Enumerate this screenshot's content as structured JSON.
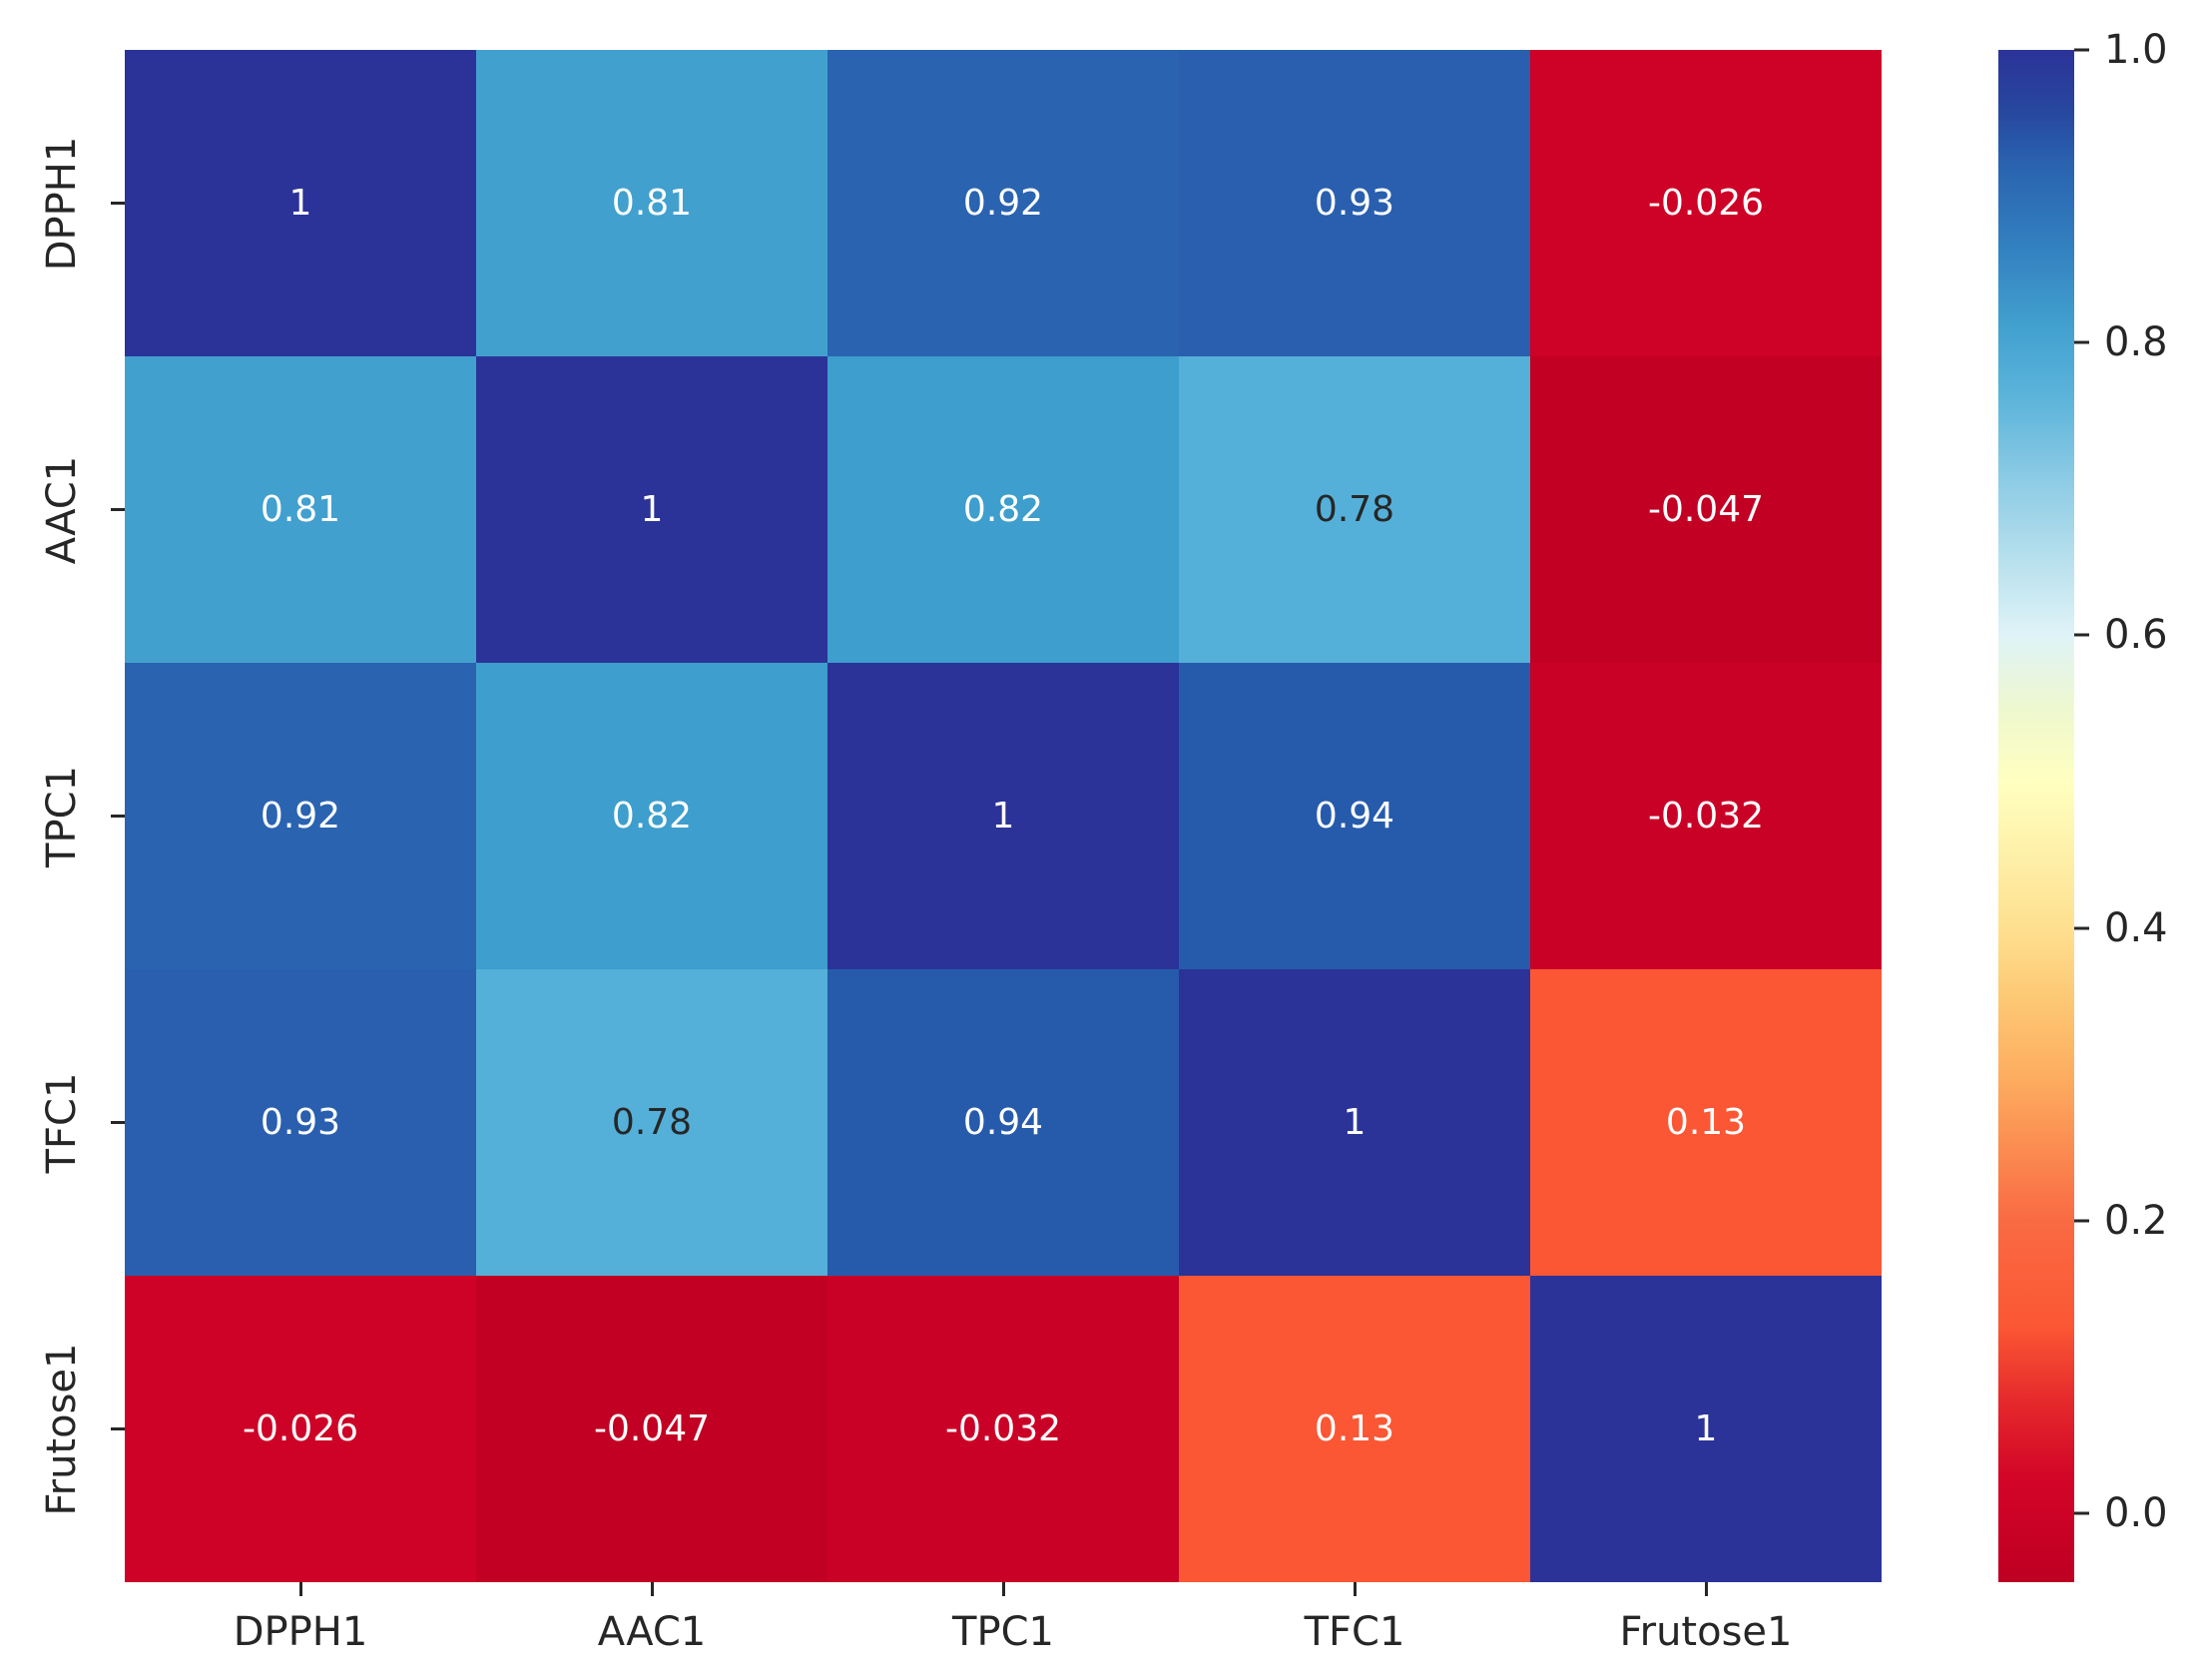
{
  "chart_data": {
    "type": "heatmap",
    "title": "",
    "variables": [
      "DPPH1",
      "AAC1",
      "TPC1",
      "TFC1",
      "Frutose1"
    ],
    "matrix": [
      [
        1,
        0.81,
        0.92,
        0.93,
        -0.026
      ],
      [
        0.81,
        1,
        0.82,
        0.78,
        -0.047
      ],
      [
        0.92,
        0.82,
        1,
        0.94,
        -0.032
      ],
      [
        0.93,
        0.78,
        0.94,
        1,
        0.13
      ],
      [
        -0.026,
        -0.047,
        -0.032,
        0.13,
        1
      ]
    ],
    "matrix_labels": [
      [
        "1",
        "0.81",
        "0.92",
        "0.93",
        "-0.026"
      ],
      [
        "0.81",
        "1",
        "0.82",
        "0.78",
        "-0.047"
      ],
      [
        "0.92",
        "0.82",
        "1",
        "0.94",
        "-0.032"
      ],
      [
        "0.93",
        "0.78",
        "0.94",
        "1",
        "0.13"
      ],
      [
        "-0.026",
        "-0.047",
        "-0.032",
        "0.13",
        "1"
      ]
    ],
    "colormap": "RdYlBu",
    "vmin": -0.047,
    "vmax": 1.0,
    "annotation_default_color": "#ffffff",
    "axis_label_color": "#262626",
    "value_colors": {
      "1": "#2b3398",
      "0.94": "#265bac",
      "0.93": "#295fae",
      "0.92": "#2a63b0",
      "0.82": "#3e9ecd",
      "0.81": "#42a0cf",
      "0.78": "#54b0d8",
      "0.13": "#fb5734",
      "-0.026": "#cd0226",
      "-0.032": "#ca0127",
      "-0.047": "#c20023"
    },
    "value_text_colors": {
      "0.78": "#262626"
    },
    "colorbar": {
      "ticks": [
        {
          "label": "1.0",
          "value": 1.0
        },
        {
          "label": "0.8",
          "value": 0.8
        },
        {
          "label": "0.6",
          "value": 0.6
        },
        {
          "label": "0.4",
          "value": 0.4
        },
        {
          "label": "0.2",
          "value": 0.2
        },
        {
          "label": "0.0",
          "value": 0.0
        }
      ],
      "gradient_stops": [
        {
          "pos": 0,
          "color": "#2b3398"
        },
        {
          "pos": 4,
          "color": "#27479f"
        },
        {
          "pos": 7.5,
          "color": "#2a63b0"
        },
        {
          "pos": 13,
          "color": "#3381c0"
        },
        {
          "pos": 18,
          "color": "#42a0cf"
        },
        {
          "pos": 22.5,
          "color": "#5ab3da"
        },
        {
          "pos": 28,
          "color": "#8ccbe5"
        },
        {
          "pos": 33,
          "color": "#b5dfed"
        },
        {
          "pos": 38.2,
          "color": "#dff3f7"
        },
        {
          "pos": 43,
          "color": "#eef8cf"
        },
        {
          "pos": 47.8,
          "color": "#ffffbf"
        },
        {
          "pos": 52.5,
          "color": "#fef0a9"
        },
        {
          "pos": 57.3,
          "color": "#fee090"
        },
        {
          "pos": 62,
          "color": "#fdc874"
        },
        {
          "pos": 66.8,
          "color": "#fdae61"
        },
        {
          "pos": 71.6,
          "color": "#fb8d51"
        },
        {
          "pos": 76.4,
          "color": "#f96a43"
        },
        {
          "pos": 83.3,
          "color": "#fb5734"
        },
        {
          "pos": 88,
          "color": "#e62b2c"
        },
        {
          "pos": 93,
          "color": "#d30627"
        },
        {
          "pos": 95.5,
          "color": "#cd0226"
        },
        {
          "pos": 100,
          "color": "#bd0022"
        }
      ]
    }
  }
}
